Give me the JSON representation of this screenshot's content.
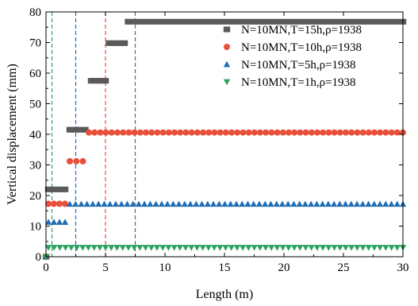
{
  "chart_data": {
    "type": "scatter",
    "title": "",
    "xlabel": "Length (m)",
    "ylabel": "Vertical displacement (mm)",
    "xlim": [
      0,
      30
    ],
    "ylim": [
      0,
      80
    ],
    "x_ticks": [
      "0",
      "5",
      "10",
      "15",
      "20",
      "25",
      "30"
    ],
    "y_ticks": [
      "0",
      "10",
      "20",
      "30",
      "40",
      "50",
      "60",
      "70",
      "80"
    ],
    "grid": false,
    "legend_position": "top-right",
    "vertical_reference_lines": [
      {
        "x": 0.5,
        "color": "#2ca25f"
      },
      {
        "x": 2.5,
        "color": "#1f6fb5"
      },
      {
        "x": 5.0,
        "color": "#e8503a"
      },
      {
        "x": 7.5,
        "color": "#666666"
      }
    ],
    "series": [
      {
        "name": "N=10MN,T=15h,ρ=1938",
        "marker": "square",
        "color": "#5a5a5a",
        "segments": [
          {
            "x_start": 0,
            "x_end": 0,
            "y": 0
          },
          {
            "x_start": 0.2,
            "x_end": 1.6,
            "y": 22
          },
          {
            "x_start": 2.0,
            "x_end": 3.3,
            "y": 41.5
          },
          {
            "x_start": 3.8,
            "x_end": 5.0,
            "y": 57.5
          },
          {
            "x_start": 5.3,
            "x_end": 6.6,
            "y": 69.8
          },
          {
            "x_start": 6.9,
            "x_end": 30,
            "y": 76.8
          }
        ]
      },
      {
        "name": "N=10MN,T=10h,ρ=1938",
        "marker": "circle",
        "color": "#e8503a",
        "segments": [
          {
            "x_start": 0,
            "x_end": 0,
            "y": 0
          },
          {
            "x_start": 0.2,
            "x_end": 1.6,
            "y": 17.3
          },
          {
            "x_start": 2.0,
            "x_end": 3.1,
            "y": 31.2
          },
          {
            "x_start": 3.6,
            "x_end": 30,
            "y": 40.6
          }
        ]
      },
      {
        "name": "N=10MN,T=5h,ρ=1938",
        "marker": "triangle-up",
        "color": "#1f6fb5",
        "segments": [
          {
            "x_start": 0,
            "x_end": 0,
            "y": 0
          },
          {
            "x_start": 0.2,
            "x_end": 1.6,
            "y": 11.3
          },
          {
            "x_start": 2.0,
            "x_end": 30,
            "y": 17.2
          }
        ]
      },
      {
        "name": "N=10MN,T=1h,ρ=1938",
        "marker": "triangle-down",
        "color": "#2ca25f",
        "segments": [
          {
            "x_start": 0,
            "x_end": 0,
            "y": 0
          },
          {
            "x_start": 0.2,
            "x_end": 30,
            "y": 3.0
          }
        ]
      }
    ]
  }
}
